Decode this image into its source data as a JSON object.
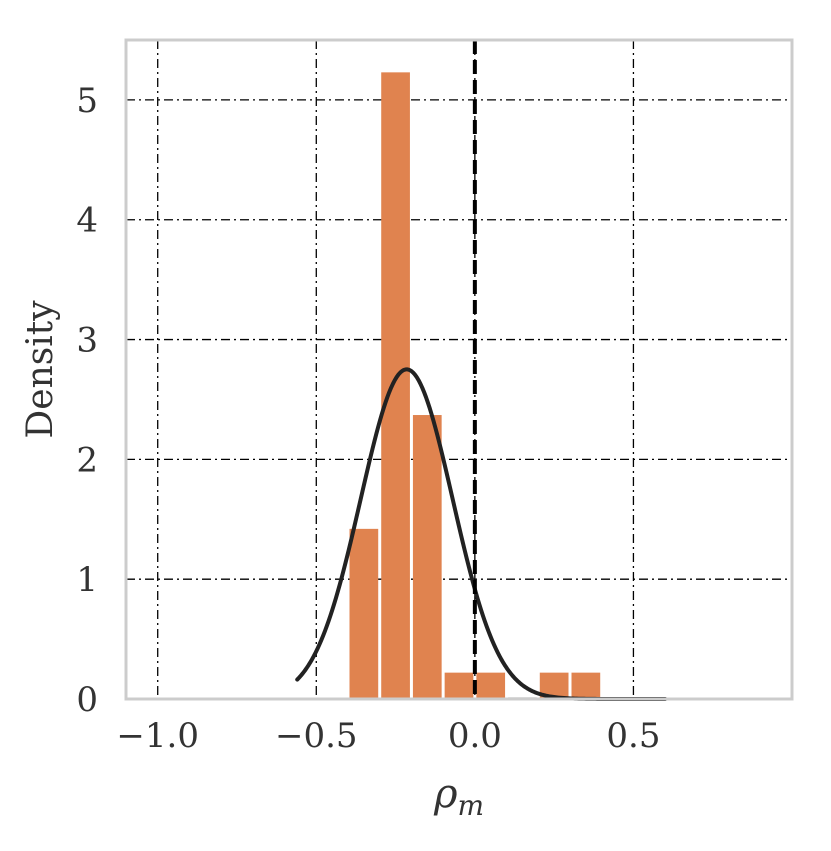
{
  "chart_data": {
    "type": "bar",
    "title": "",
    "xlabel": "ρ",
    "xlabel_subscript": "m",
    "ylabel": "Density",
    "xlim": [
      -1.1,
      1.0
    ],
    "ylim": [
      0,
      5.5
    ],
    "x_ticks": [
      -1.0,
      -0.5,
      0.0,
      0.5
    ],
    "x_tick_labels": [
      "−1.0",
      "−0.5",
      "0.0",
      "0.5"
    ],
    "y_ticks": [
      0,
      1,
      2,
      3,
      4,
      5
    ],
    "y_tick_labels": [
      "0",
      "1",
      "2",
      "3",
      "4",
      "5"
    ],
    "grid": true,
    "bar_color": "#e0834f",
    "bins": [
      {
        "x0": -0.4,
        "x1": -0.3,
        "value": 1.42
      },
      {
        "x0": -0.3,
        "x1": -0.2,
        "value": 5.23
      },
      {
        "x0": -0.2,
        "x1": -0.1,
        "value": 2.37
      },
      {
        "x0": -0.1,
        "x1": 0.0,
        "value": 0.22
      },
      {
        "x0": 0.0,
        "x1": 0.1,
        "value": 0.22
      },
      {
        "x0": 0.1,
        "x1": 0.2,
        "value": 0.0
      },
      {
        "x0": 0.2,
        "x1": 0.3,
        "value": 0.22
      },
      {
        "x0": 0.3,
        "x1": 0.4,
        "value": 0.22
      },
      {
        "x0": 0.4,
        "x1": 0.5,
        "value": 0.0
      },
      {
        "x0": 0.5,
        "x1": 0.6,
        "value": 0.0
      }
    ],
    "density_curve": {
      "type": "normal",
      "mean": -0.215,
      "std": 0.145,
      "x_range": [
        -0.56,
        0.6
      ],
      "color": "#222222"
    },
    "reference_line": {
      "x": 0.0,
      "style": "dashed",
      "color": "#000000"
    }
  }
}
